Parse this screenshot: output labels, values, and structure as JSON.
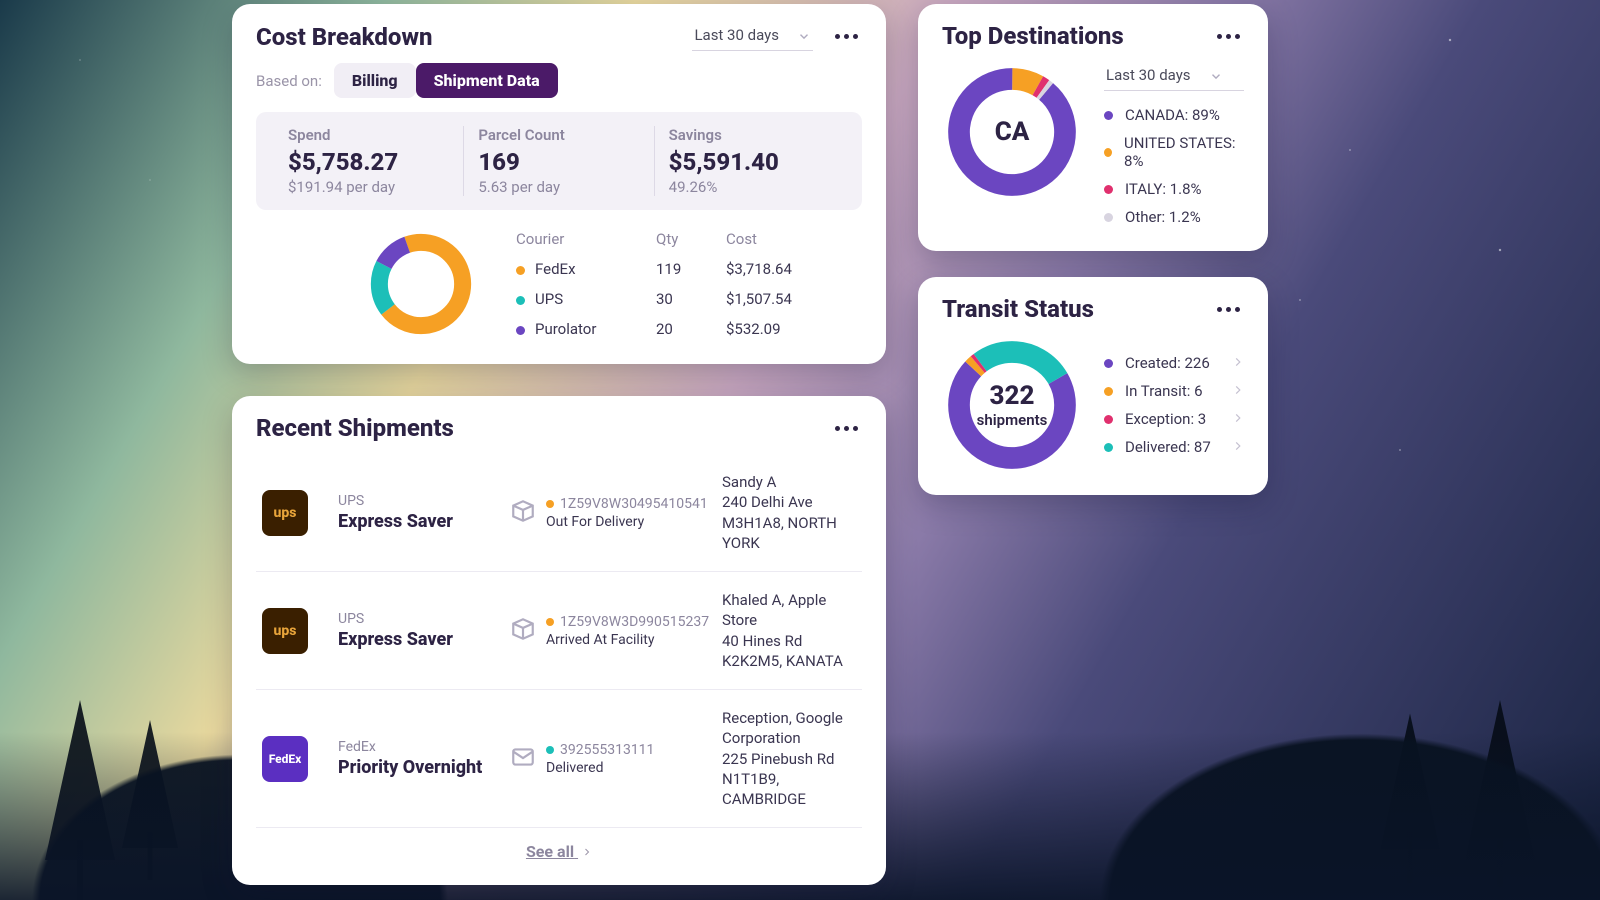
{
  "colors": {
    "purple": "#6b46c1",
    "orange": "#f6a024",
    "teal": "#1cbfb8",
    "pink": "#e0306e",
    "grey": "#d8d4e0"
  },
  "cost": {
    "title": "Cost Breakdown",
    "period": "Last 30 days",
    "basis_label": "Based on:",
    "tab_billing": "Billing",
    "tab_shipment": "Shipment Data",
    "stats": {
      "spend": {
        "label": "Spend",
        "value": "$5,758.27",
        "sub": "$191.94 per day"
      },
      "parcel": {
        "label": "Parcel Count",
        "value": "169",
        "sub": "5.63 per day"
      },
      "savings": {
        "label": "Savings",
        "value": "$5,591.40",
        "sub": "49.26%"
      }
    },
    "courier_table": {
      "head": {
        "c1": "Courier",
        "c2": "Qty",
        "c3": "Cost"
      },
      "rows": [
        {
          "name": "FedEx",
          "qty": "119",
          "cost": "$3,718.64",
          "color": "#f6a024",
          "pct": 70
        },
        {
          "name": "UPS",
          "qty": "30",
          "cost": "$1,507.54",
          "color": "#1cbfb8",
          "pct": 18
        },
        {
          "name": "Purolator",
          "qty": "20",
          "cost": "$532.09",
          "color": "#6b46c1",
          "pct": 12
        }
      ]
    }
  },
  "destinations": {
    "title": "Top Destinations",
    "period": "Last 30 days",
    "center": "CA",
    "items": [
      {
        "name": "CANADA",
        "pct": "89%",
        "val": 89,
        "color": "#6b46c1"
      },
      {
        "name": "UNITED STATES",
        "pct": "8%",
        "val": 8,
        "color": "#f6a024"
      },
      {
        "name": "ITALY",
        "pct": "1.8%",
        "val": 1.8,
        "color": "#e0306e"
      },
      {
        "name": "Other",
        "pct": "1.2%",
        "val": 1.2,
        "color": "#d8d4e0"
      }
    ]
  },
  "transit": {
    "title": "Transit Status",
    "center_num": "322",
    "center_label": "shipments",
    "items": [
      {
        "label": "Created",
        "val": "226",
        "num": 226,
        "color": "#6b46c1"
      },
      {
        "label": "In Transit",
        "val": "6",
        "num": 6,
        "color": "#f6a024"
      },
      {
        "label": "Exception",
        "val": "3",
        "num": 3,
        "color": "#e0306e"
      },
      {
        "label": "Delivered",
        "val": "87",
        "num": 87,
        "color": "#1cbfb8"
      }
    ]
  },
  "shipments": {
    "title": "Recent Shipments",
    "see_all": "See all",
    "list": [
      {
        "carrier": "UPS",
        "service": "Express Saver",
        "tracking": "1Z59V8W30495410541",
        "status": "Out For Delivery",
        "status_color": "#f6a024",
        "name": "Sandy A",
        "line1": "240 Delhi Ave",
        "line2": "M3H1A8, NORTH YORK",
        "logo": "ups",
        "icon": "box"
      },
      {
        "carrier": "UPS",
        "service": "Express Saver",
        "tracking": "1Z59V8W3D990515237",
        "status": "Arrived At Facility",
        "status_color": "#f6a024",
        "name": "Khaled A, Apple Store",
        "line1": "40 Hines Rd",
        "line2": "K2K2M5, KANATA",
        "logo": "ups",
        "icon": "box"
      },
      {
        "carrier": "FedEx",
        "service": "Priority Overnight",
        "tracking": "392555313111",
        "status": "Delivered",
        "status_color": "#1cbfb8",
        "name": "Reception, Google Corporation",
        "line1": "225 Pinebush Rd",
        "line2": "N1T1B9, CAMBRIDGE",
        "logo": "fedex",
        "icon": "mail"
      }
    ]
  }
}
